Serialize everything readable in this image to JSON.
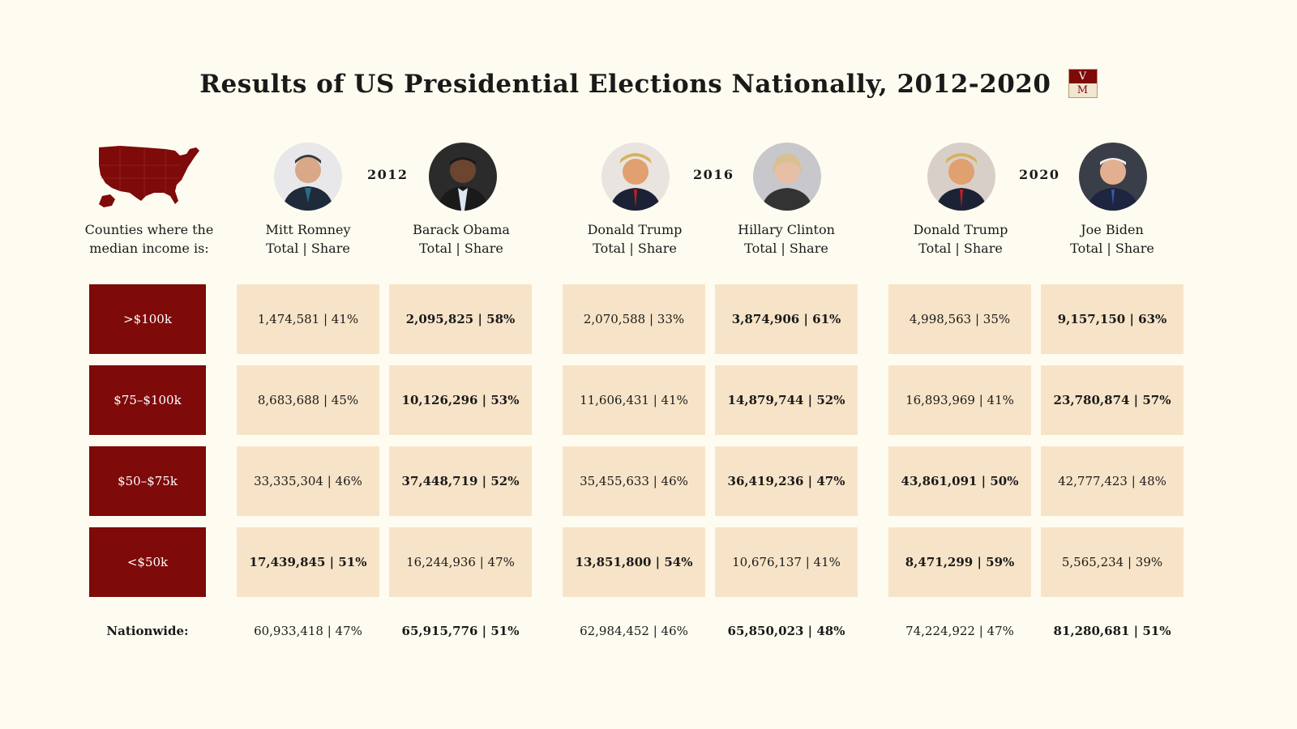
{
  "title": "Results of US Presidential Elections Nationally, 2012-2020",
  "logo": {
    "top": "V",
    "bottom": "M"
  },
  "row_header_label": [
    "Counties where the",
    "median income is:"
  ],
  "subheader": "Total | Share",
  "years": [
    "2012",
    "2016",
    "2020"
  ],
  "candidates": [
    "Mitt Romney",
    "Barack Obama",
    "Donald Trump",
    "Hillary Clinton",
    "Donald Trump",
    "Joe Biden"
  ],
  "colors": {
    "accent": "#7e0a0a",
    "cell_bg": "#f7e4c8",
    "background": "#fefcf0"
  },
  "chart_data": {
    "type": "table",
    "title": "Results of US Presidential Elections Nationally, 2012-2020",
    "row_labels": [
      ">$100k",
      "$75–$100k",
      "$50–$75k",
      "<$50k"
    ],
    "columns": [
      {
        "year": "2012",
        "candidate": "Mitt Romney",
        "cells": [
          "1,474,581 | 41%",
          "8,683,688 | 45%",
          "33,335,304 | 46%",
          "17,439,845 | 51%"
        ],
        "winner": [
          false,
          false,
          false,
          true
        ]
      },
      {
        "year": "2012",
        "candidate": "Barack Obama",
        "cells": [
          "2,095,825 | 58%",
          "10,126,296 | 53%",
          "37,448,719 | 52%",
          "16,244,936 | 47%"
        ],
        "winner": [
          true,
          true,
          true,
          false
        ]
      },
      {
        "year": "2016",
        "candidate": "Donald Trump",
        "cells": [
          "2,070,588 | 33%",
          "11,606,431 | 41%",
          "35,455,633 | 46%",
          "13,851,800 | 54%"
        ],
        "winner": [
          false,
          false,
          false,
          true
        ]
      },
      {
        "year": "2016",
        "candidate": "Hillary Clinton",
        "cells": [
          "3,874,906 | 61%",
          "14,879,744 | 52%",
          "36,419,236 | 47%",
          "10,676,137 | 41%"
        ],
        "winner": [
          true,
          true,
          true,
          false
        ]
      },
      {
        "year": "2020",
        "candidate": "Donald Trump",
        "cells": [
          "4,998,563 | 35%",
          "16,893,969 | 41%",
          "43,861,091 | 50%",
          "8,471,299 | 59%"
        ],
        "winner": [
          false,
          false,
          true,
          true
        ]
      },
      {
        "year": "2020",
        "candidate": "Joe Biden",
        "cells": [
          "9,157,150 | 63%",
          "23,780,874 | 57%",
          "42,777,423 | 48%",
          "5,565,234 | 39%"
        ],
        "winner": [
          true,
          true,
          false,
          false
        ]
      }
    ],
    "nationwide_label": "Nationwide:",
    "nationwide": [
      "60,933,418 | 47%",
      "65,915,776 | 51%",
      "62,984,452 | 46%",
      "65,850,023 | 48%",
      "74,224,922 | 47%",
      "81,280,681 | 51%"
    ],
    "nationwide_winner": [
      false,
      true,
      false,
      true,
      false,
      true
    ]
  }
}
